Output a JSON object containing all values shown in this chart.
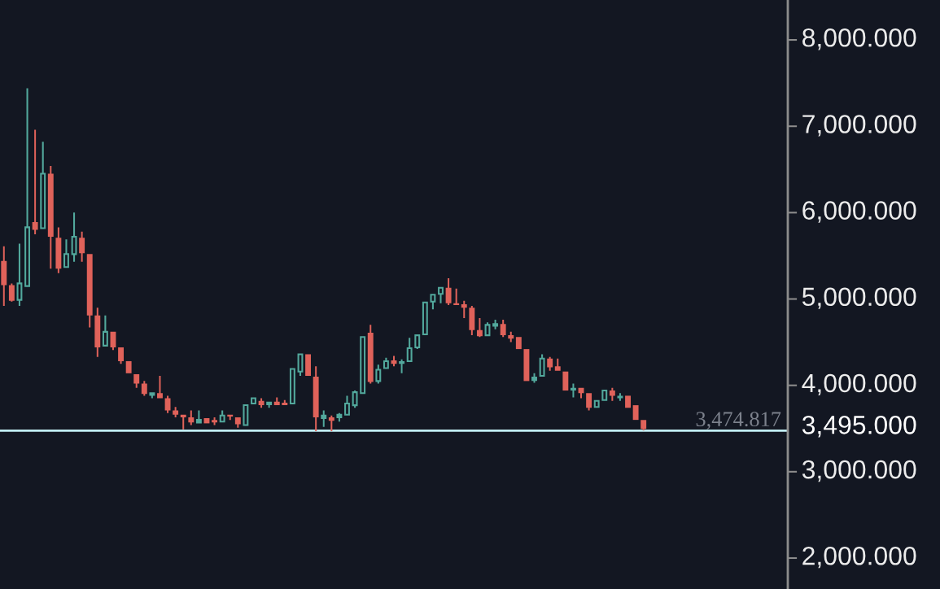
{
  "chart_data": {
    "type": "candlestick",
    "categories": [
      null,
      null,
      null,
      null,
      null,
      null,
      null,
      null,
      null,
      null,
      null,
      null,
      null,
      null,
      null,
      null,
      null,
      null,
      null,
      null,
      null,
      null,
      null,
      null,
      null,
      null,
      null,
      null,
      null,
      null,
      null,
      null,
      null,
      null,
      null,
      null,
      null,
      null,
      null,
      null,
      null,
      null,
      null,
      null,
      null,
      null,
      null,
      null,
      null,
      null,
      null,
      null,
      null,
      null,
      null,
      null,
      null,
      null,
      null,
      null,
      null,
      null,
      null,
      null,
      null,
      null,
      null,
      null,
      null,
      null,
      null,
      null,
      null,
      null,
      null,
      null,
      null,
      null,
      null,
      null,
      null,
      null,
      null,
      null,
      null,
      null,
      null,
      null,
      null,
      null,
      null,
      null,
      null,
      null,
      null,
      null,
      null,
      null,
      null,
      null,
      null
    ],
    "ohlc": [
      [
        5440,
        5610,
        4920,
        5160
      ],
      [
        5160,
        5180,
        4970,
        4980
      ],
      [
        4980,
        5640,
        4920,
        5190
      ],
      [
        5140,
        7440,
        5140,
        5840
      ],
      [
        5890,
        6960,
        5750,
        5800
      ],
      [
        5810,
        6820,
        5810,
        6460
      ],
      [
        6450,
        6540,
        5350,
        5720
      ],
      [
        5710,
        5830,
        5300,
        5350
      ],
      [
        5360,
        5690,
        5360,
        5530
      ],
      [
        5510,
        6000,
        5430,
        5730
      ],
      [
        5710,
        5780,
        5430,
        5530
      ],
      [
        5520,
        5520,
        4670,
        4810
      ],
      [
        4810,
        4900,
        4330,
        4440
      ],
      [
        4450,
        4810,
        4450,
        4630
      ],
      [
        4620,
        4620,
        4410,
        4440
      ],
      [
        4440,
        4440,
        4250,
        4280
      ],
      [
        4280,
        4280,
        4140,
        4140
      ],
      [
        4130,
        4130,
        3970,
        4020
      ],
      [
        4020,
        4050,
        3880,
        3900
      ],
      [
        3880,
        3920,
        3850,
        3920
      ],
      [
        3910,
        4110,
        3850,
        3850
      ],
      [
        3850,
        3880,
        3680,
        3710
      ],
      [
        3710,
        3750,
        3630,
        3660
      ],
      [
        3660,
        3660,
        3490,
        3630
      ],
      [
        3630,
        3710,
        3540,
        3570
      ],
      [
        3560,
        3710,
        3560,
        3610
      ],
      [
        3620,
        3620,
        3560,
        3560
      ],
      [
        3600,
        3630,
        3540,
        3570
      ],
      [
        3570,
        3710,
        3570,
        3660
      ],
      [
        3660,
        3660,
        3600,
        3640
      ],
      [
        3630,
        3630,
        3510,
        3550
      ],
      [
        3530,
        3780,
        3530,
        3780
      ],
      [
        3780,
        3860,
        3780,
        3860
      ],
      [
        3820,
        3850,
        3740,
        3770
      ],
      [
        3770,
        3810,
        3740,
        3810
      ],
      [
        3810,
        3860,
        3770,
        3770
      ],
      [
        3800,
        3830,
        3770,
        3770
      ],
      [
        3780,
        4200,
        3780,
        4200
      ],
      [
        4150,
        4370,
        4110,
        4370
      ],
      [
        4360,
        4360,
        4110,
        4110
      ],
      [
        4100,
        4220,
        3470,
        3630
      ],
      [
        3610,
        3710,
        3520,
        3660
      ],
      [
        3630,
        3650,
        3470,
        3590
      ],
      [
        3620,
        3680,
        3580,
        3670
      ],
      [
        3650,
        3880,
        3650,
        3800
      ],
      [
        3760,
        3940,
        3740,
        3930
      ],
      [
        3900,
        4570,
        3900,
        4570
      ],
      [
        4610,
        4700,
        4020,
        4040
      ],
      [
        4040,
        4240,
        4020,
        4190
      ],
      [
        4190,
        4320,
        4190,
        4290
      ],
      [
        4290,
        4340,
        4220,
        4250
      ],
      [
        4250,
        4300,
        4140,
        4280
      ],
      [
        4270,
        4550,
        4270,
        4440
      ],
      [
        4430,
        4590,
        4420,
        4590
      ],
      [
        4580,
        4970,
        4580,
        4970
      ],
      [
        4960,
        5060,
        4880,
        5060
      ],
      [
        5050,
        5140,
        4950,
        5140
      ],
      [
        5130,
        5240,
        4930,
        4950
      ],
      [
        4950,
        5120,
        4930,
        4930
      ],
      [
        4940,
        4980,
        4780,
        4900
      ],
      [
        4900,
        4920,
        4580,
        4640
      ],
      [
        4640,
        4780,
        4560,
        4570
      ],
      [
        4570,
        4730,
        4570,
        4710
      ],
      [
        4680,
        4760,
        4650,
        4720
      ],
      [
        4710,
        4760,
        4560,
        4580
      ],
      [
        4580,
        4620,
        4500,
        4540
      ],
      [
        4560,
        4560,
        4420,
        4420
      ],
      [
        4420,
        4420,
        4050,
        4050
      ],
      [
        4050,
        4140,
        4030,
        4100
      ],
      [
        4100,
        4360,
        4100,
        4320
      ],
      [
        4310,
        4330,
        4170,
        4210
      ],
      [
        4220,
        4310,
        4170,
        4170
      ],
      [
        4160,
        4160,
        3940,
        3940
      ],
      [
        3940,
        4020,
        3860,
        3970
      ],
      [
        3970,
        3970,
        3850,
        3910
      ],
      [
        3910,
        3910,
        3710,
        3740
      ],
      [
        3740,
        3830,
        3740,
        3830
      ],
      [
        3820,
        3950,
        3820,
        3950
      ],
      [
        3940,
        3970,
        3820,
        3880
      ],
      [
        3850,
        3910,
        3820,
        3880
      ],
      [
        3880,
        3880,
        3740,
        3740
      ],
      [
        3770,
        3770,
        3600,
        3600
      ],
      [
        3600,
        3600,
        3480,
        3495
      ],
      null,
      null,
      null,
      null,
      null,
      null,
      null,
      null,
      null,
      null,
      null,
      null,
      null,
      null,
      null,
      null,
      null,
      null
    ],
    "colors": [
      "#e0625a",
      "#e0625a",
      "#52a89c",
      "#52a89c",
      "#e0625a",
      "#52a89c",
      "#e0625a",
      "#e0625a",
      "#52a89c",
      "#52a89c",
      "#e0625a",
      "#e0625a",
      "#e0625a",
      "#52a89c",
      "#e0625a",
      "#e0625a",
      "#e0625a",
      "#e0625a",
      "#e0625a",
      "#52a89c",
      "#e0625a",
      "#e0625a",
      "#e0625a",
      "#e0625a",
      "#e0625a",
      "#52a89c",
      "#e0625a",
      "#e0625a",
      "#52a89c",
      "#e0625a",
      "#e0625a",
      "#52a89c",
      "#52a89c",
      "#e0625a",
      "#52a89c",
      "#e0625a",
      "#e0625a",
      "#52a89c",
      "#52a89c",
      "#e0625a",
      "#e0625a",
      "#52a89c",
      "#e0625a",
      "#52a89c",
      "#52a89c",
      "#52a89c",
      "#52a89c",
      "#e0625a",
      "#52a89c",
      "#52a89c",
      "#e0625a",
      "#52a89c",
      "#52a89c",
      "#52a89c",
      "#52a89c",
      "#52a89c",
      "#52a89c",
      "#e0625a",
      "#e0625a",
      "#e0625a",
      "#e0625a",
      "#e0625a",
      "#52a89c",
      "#52a89c",
      "#e0625a",
      "#e0625a",
      "#e0625a",
      "#e0625a",
      "#52a89c",
      "#52a89c",
      "#e0625a",
      "#e0625a",
      "#e0625a",
      "#52a89c",
      "#e0625a",
      "#e0625a",
      "#52a89c",
      "#52a89c",
      "#e0625a",
      "#52a89c",
      "#e0625a",
      "#e0625a",
      "#e0625a",
      null,
      null,
      null,
      null,
      null,
      null,
      null,
      null,
      null,
      null,
      null,
      null,
      null,
      null,
      null,
      null,
      null,
      null
    ],
    "ylim": [
      1642,
      8462
    ],
    "yticks": [
      {
        "value": 2000,
        "label": "2,000.000"
      },
      {
        "value": 3000,
        "label": "3,000.000"
      },
      {
        "value": 3495,
        "label": "3,495.000"
      },
      {
        "value": 4000,
        "label": "4,000.000"
      },
      {
        "value": 5000,
        "label": "5,000.000"
      },
      {
        "value": 6000,
        "label": "6,000.000"
      },
      {
        "value": 7000,
        "label": "7,000.000"
      },
      {
        "value": 8000,
        "label": "8,000.000"
      }
    ],
    "tick_labels": "y",
    "ref_lines": [
      {
        "axis": "y",
        "value": 3474.817,
        "label": "3,474.817",
        "color": "#c2eef3"
      }
    ]
  }
}
